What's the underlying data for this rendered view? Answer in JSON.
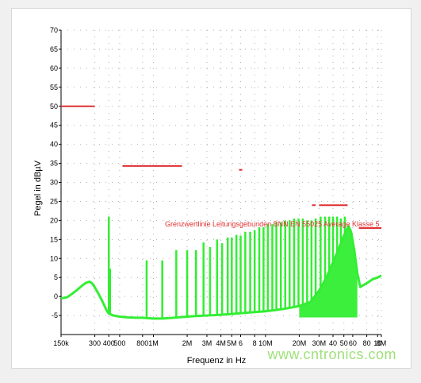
{
  "watermark": "www.cntronics.com",
  "chart_data": {
    "type": "line",
    "xlabel": "Frequenz in Hz",
    "ylabel": "Pegel in dBµV",
    "xscale": "log",
    "xlim": [
      150000,
      108000000
    ],
    "ylim": [
      -10,
      70
    ],
    "grid": true,
    "yticks": [
      -5,
      0,
      5,
      10,
      15,
      20,
      25,
      30,
      35,
      40,
      45,
      50,
      55,
      60,
      65,
      70
    ],
    "xticks": [
      {
        "v": 150000,
        "label": "150k"
      },
      {
        "v": 300000,
        "label": "300"
      },
      {
        "v": 400000,
        "label": "400"
      },
      {
        "v": 500000,
        "label": "500"
      },
      {
        "v": 800000,
        "label": "800"
      },
      {
        "v": 1000000,
        "label": "1M"
      },
      {
        "v": 2000000,
        "label": "2M"
      },
      {
        "v": 3000000,
        "label": "3M"
      },
      {
        "v": 4000000,
        "label": "4M"
      },
      {
        "v": 5000000,
        "label": "5M"
      },
      {
        "v": 6000000,
        "label": "6"
      },
      {
        "v": 8000000,
        "label": "8"
      },
      {
        "v": 10000000,
        "label": "10M"
      },
      {
        "v": 20000000,
        "label": "20M"
      },
      {
        "v": 30000000,
        "label": "30M"
      },
      {
        "v": 40000000,
        "label": "40"
      },
      {
        "v": 50000000,
        "label": "50"
      },
      {
        "v": 60000000,
        "label": "60"
      },
      {
        "v": 80000000,
        "label": "80"
      },
      {
        "v": 100000000,
        "label": "10"
      },
      {
        "v": 108000000,
        "label": "8M"
      }
    ],
    "limit_annotation": "Grenzwertlinie Leitungsgebunden BNN EN 55025 Average Klasse 5",
    "limit_segments": [
      {
        "x": [
          150000,
          300000
        ],
        "y": 50
      },
      {
        "x": [
          530000,
          1800000
        ],
        "y": 34.3
      },
      {
        "x": [
          5800000,
          6200000
        ],
        "y": 33.3
      },
      {
        "x": [
          26000000,
          28000000
        ],
        "y": 24
      },
      {
        "x": [
          30000000,
          54000000
        ],
        "y": 24
      },
      {
        "x": [
          68000000,
          108000000
        ],
        "y": 18
      }
    ],
    "series": [
      {
        "color": "#33ee33",
        "x": [
          150000,
          170000,
          190000,
          210000,
          230000,
          250000,
          270000,
          285000,
          300000,
          320000,
          340000,
          360000,
          380000,
          400000,
          440000,
          500000,
          600000,
          700000,
          800000,
          1000000,
          1200000,
          1500000,
          2000000,
          2500000,
          3000000,
          4000000,
          5000000,
          6000000,
          8000000,
          10000000,
          12000000,
          15000000,
          20000000,
          25000000,
          30000000,
          35000000,
          40000000,
          45000000,
          50000000,
          55000000,
          58000000,
          62000000,
          66000000,
          70000000,
          80000000,
          90000000,
          100000000,
          108000000
        ],
        "y": [
          -0.5,
          -0.2,
          0.8,
          1.8,
          2.8,
          3.6,
          3.9,
          3.4,
          2.4,
          1.0,
          -0.5,
          -2.0,
          -3.5,
          -4.5,
          -5.0,
          -5.3,
          -5.5,
          -5.6,
          -5.6,
          -5.8,
          -5.8,
          -5.6,
          -5.3,
          -5.1,
          -5.0,
          -4.8,
          -4.6,
          -4.4,
          -4.1,
          -3.9,
          -3.6,
          -3.2,
          -2.5,
          -1.5,
          1.5,
          5.0,
          9.0,
          12.5,
          16.0,
          18.5,
          17.0,
          12.0,
          6.0,
          2.5,
          3.5,
          4.5,
          5.0,
          5.5
        ]
      }
    ],
    "spikes": [
      {
        "x": 400000,
        "y": 21
      },
      {
        "x": 410000,
        "y": 7.3
      },
      {
        "x": 870000,
        "y": 9.5
      },
      {
        "x": 1200000,
        "y": 9.5
      },
      {
        "x": 1600000,
        "y": 12.2
      },
      {
        "x": 2000000,
        "y": 12.2
      },
      {
        "x": 2400000,
        "y": 12.2
      },
      {
        "x": 2800000,
        "y": 14.2
      },
      {
        "x": 3200000,
        "y": 13.0
      },
      {
        "x": 3700000,
        "y": 15.0
      },
      {
        "x": 4100000,
        "y": 14.0
      },
      {
        "x": 4600000,
        "y": 15.5
      },
      {
        "x": 5000000,
        "y": 15.5
      },
      {
        "x": 5500000,
        "y": 16.2
      },
      {
        "x": 6000000,
        "y": 16.0
      },
      {
        "x": 6600000,
        "y": 17.0
      },
      {
        "x": 7300000,
        "y": 17.0
      },
      {
        "x": 8000000,
        "y": 17.5
      },
      {
        "x": 8800000,
        "y": 18.2
      },
      {
        "x": 9600000,
        "y": 18.2
      },
      {
        "x": 10500000,
        "y": 19.0
      },
      {
        "x": 11500000,
        "y": 19.0
      },
      {
        "x": 12500000,
        "y": 19.5
      },
      {
        "x": 13700000,
        "y": 19.5
      },
      {
        "x": 15000000,
        "y": 20.0
      },
      {
        "x": 16400000,
        "y": 20.0
      },
      {
        "x": 18000000,
        "y": 20.5
      },
      {
        "x": 19700000,
        "y": 20.5
      },
      {
        "x": 21500000,
        "y": 20.5
      },
      {
        "x": 23500000,
        "y": 20.0
      },
      {
        "x": 25700000,
        "y": 20.0
      },
      {
        "x": 28000000,
        "y": 20.5
      },
      {
        "x": 31000000,
        "y": 21.0
      },
      {
        "x": 34000000,
        "y": 21.0
      },
      {
        "x": 37000000,
        "y": 21.0
      },
      {
        "x": 40000000,
        "y": 21.0
      },
      {
        "x": 43500000,
        "y": 21.0
      },
      {
        "x": 47000000,
        "y": 20.5
      },
      {
        "x": 51000000,
        "y": 21.0
      }
    ]
  }
}
